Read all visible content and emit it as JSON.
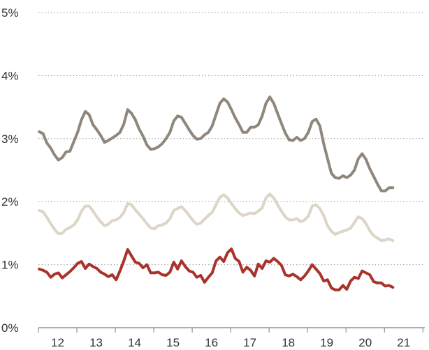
{
  "chart_data": {
    "type": "line",
    "title": "",
    "xlabel": "",
    "ylabel": "",
    "y_unit": "%",
    "ylim": [
      0,
      5
    ],
    "yticks": [
      0,
      1,
      2,
      3,
      4,
      5
    ],
    "ytick_labels": [
      "0%",
      "1%",
      "2%",
      "3%",
      "4%",
      "5%"
    ],
    "xlim": [
      11.5,
      21.55
    ],
    "x_categories": [
      "12",
      "13",
      "14",
      "15",
      "16",
      "17",
      "18",
      "19",
      "20",
      "21"
    ],
    "x_boundaries": [
      11.5,
      12.5,
      13.5,
      14.5,
      15.5,
      16.5,
      17.5,
      18.5,
      19.5,
      20.5,
      21.5
    ],
    "grid": "horizontal dotted",
    "legend": "none",
    "series": [
      {
        "color": "#8f877b",
        "points": [
          [
            11.52,
            3.11
          ],
          [
            11.62,
            3.08
          ],
          [
            11.72,
            2.93
          ],
          [
            11.82,
            2.85
          ],
          [
            11.92,
            2.74
          ],
          [
            12.02,
            2.66
          ],
          [
            12.12,
            2.7
          ],
          [
            12.22,
            2.79
          ],
          [
            12.32,
            2.8
          ],
          [
            12.42,
            2.95
          ],
          [
            12.52,
            3.1
          ],
          [
            12.62,
            3.3
          ],
          [
            12.72,
            3.43
          ],
          [
            12.82,
            3.38
          ],
          [
            12.92,
            3.22
          ],
          [
            13.02,
            3.14
          ],
          [
            13.12,
            3.05
          ],
          [
            13.22,
            2.94
          ],
          [
            13.32,
            2.97
          ],
          [
            13.42,
            3.01
          ],
          [
            13.52,
            3.05
          ],
          [
            13.62,
            3.1
          ],
          [
            13.72,
            3.23
          ],
          [
            13.82,
            3.46
          ],
          [
            13.92,
            3.4
          ],
          [
            14.02,
            3.3
          ],
          [
            14.12,
            3.15
          ],
          [
            14.22,
            3.04
          ],
          [
            14.32,
            2.9
          ],
          [
            14.42,
            2.83
          ],
          [
            14.52,
            2.84
          ],
          [
            14.62,
            2.87
          ],
          [
            14.72,
            2.92
          ],
          [
            14.82,
            3.0
          ],
          [
            14.92,
            3.1
          ],
          [
            15.02,
            3.28
          ],
          [
            15.12,
            3.36
          ],
          [
            15.22,
            3.34
          ],
          [
            15.32,
            3.24
          ],
          [
            15.42,
            3.14
          ],
          [
            15.52,
            3.05
          ],
          [
            15.62,
            2.99
          ],
          [
            15.72,
            3.0
          ],
          [
            15.82,
            3.06
          ],
          [
            15.92,
            3.1
          ],
          [
            16.02,
            3.2
          ],
          [
            16.12,
            3.38
          ],
          [
            16.22,
            3.56
          ],
          [
            16.32,
            3.63
          ],
          [
            16.42,
            3.58
          ],
          [
            16.52,
            3.46
          ],
          [
            16.62,
            3.33
          ],
          [
            16.72,
            3.22
          ],
          [
            16.82,
            3.1
          ],
          [
            16.92,
            3.1
          ],
          [
            17.02,
            3.18
          ],
          [
            17.12,
            3.18
          ],
          [
            17.22,
            3.22
          ],
          [
            17.32,
            3.36
          ],
          [
            17.42,
            3.56
          ],
          [
            17.52,
            3.66
          ],
          [
            17.62,
            3.56
          ],
          [
            17.72,
            3.4
          ],
          [
            17.82,
            3.24
          ],
          [
            17.92,
            3.09
          ],
          [
            18.02,
            2.98
          ],
          [
            18.12,
            2.97
          ],
          [
            18.22,
            3.02
          ],
          [
            18.32,
            2.97
          ],
          [
            18.42,
            3.0
          ],
          [
            18.52,
            3.1
          ],
          [
            18.62,
            3.27
          ],
          [
            18.72,
            3.31
          ],
          [
            18.82,
            3.2
          ],
          [
            18.92,
            2.92
          ],
          [
            19.02,
            2.68
          ],
          [
            19.12,
            2.45
          ],
          [
            19.22,
            2.38
          ],
          [
            19.32,
            2.37
          ],
          [
            19.42,
            2.41
          ],
          [
            19.52,
            2.38
          ],
          [
            19.62,
            2.42
          ],
          [
            19.72,
            2.5
          ],
          [
            19.82,
            2.68
          ],
          [
            19.92,
            2.76
          ],
          [
            20.02,
            2.67
          ],
          [
            20.12,
            2.52
          ],
          [
            20.22,
            2.4
          ],
          [
            20.32,
            2.28
          ],
          [
            20.42,
            2.17
          ],
          [
            20.52,
            2.17
          ],
          [
            20.62,
            2.22
          ],
          [
            20.72,
            2.22
          ]
        ]
      },
      {
        "color": "#ddd5c6",
        "points": [
          [
            11.52,
            1.86
          ],
          [
            11.62,
            1.84
          ],
          [
            11.72,
            1.75
          ],
          [
            11.82,
            1.65
          ],
          [
            11.92,
            1.56
          ],
          [
            12.02,
            1.49
          ],
          [
            12.12,
            1.5
          ],
          [
            12.22,
            1.56
          ],
          [
            12.32,
            1.59
          ],
          [
            12.42,
            1.63
          ],
          [
            12.52,
            1.71
          ],
          [
            12.62,
            1.85
          ],
          [
            12.72,
            1.93
          ],
          [
            12.82,
            1.93
          ],
          [
            12.92,
            1.85
          ],
          [
            13.02,
            1.76
          ],
          [
            13.12,
            1.68
          ],
          [
            13.22,
            1.62
          ],
          [
            13.32,
            1.64
          ],
          [
            13.42,
            1.7
          ],
          [
            13.52,
            1.71
          ],
          [
            13.62,
            1.75
          ],
          [
            13.72,
            1.83
          ],
          [
            13.82,
            1.97
          ],
          [
            13.92,
            1.95
          ],
          [
            14.02,
            1.87
          ],
          [
            14.12,
            1.8
          ],
          [
            14.22,
            1.73
          ],
          [
            14.32,
            1.65
          ],
          [
            14.42,
            1.58
          ],
          [
            14.52,
            1.57
          ],
          [
            14.62,
            1.62
          ],
          [
            14.72,
            1.63
          ],
          [
            14.82,
            1.66
          ],
          [
            14.92,
            1.73
          ],
          [
            15.02,
            1.86
          ],
          [
            15.12,
            1.89
          ],
          [
            15.22,
            1.92
          ],
          [
            15.32,
            1.86
          ],
          [
            15.42,
            1.78
          ],
          [
            15.52,
            1.7
          ],
          [
            15.62,
            1.64
          ],
          [
            15.72,
            1.66
          ],
          [
            15.82,
            1.72
          ],
          [
            15.92,
            1.78
          ],
          [
            16.02,
            1.83
          ],
          [
            16.12,
            1.95
          ],
          [
            16.22,
            2.07
          ],
          [
            16.32,
            2.11
          ],
          [
            16.42,
            2.06
          ],
          [
            16.52,
            1.97
          ],
          [
            16.62,
            1.89
          ],
          [
            16.72,
            1.82
          ],
          [
            16.82,
            1.78
          ],
          [
            16.92,
            1.8
          ],
          [
            17.02,
            1.82
          ],
          [
            17.12,
            1.81
          ],
          [
            17.22,
            1.85
          ],
          [
            17.32,
            1.9
          ],
          [
            17.42,
            2.06
          ],
          [
            17.52,
            2.12
          ],
          [
            17.62,
            2.06
          ],
          [
            17.72,
            1.95
          ],
          [
            17.82,
            1.85
          ],
          [
            17.92,
            1.76
          ],
          [
            18.02,
            1.71
          ],
          [
            18.12,
            1.71
          ],
          [
            18.22,
            1.73
          ],
          [
            18.32,
            1.68
          ],
          [
            18.42,
            1.71
          ],
          [
            18.52,
            1.77
          ],
          [
            18.62,
            1.93
          ],
          [
            18.72,
            1.95
          ],
          [
            18.82,
            1.89
          ],
          [
            18.92,
            1.78
          ],
          [
            19.02,
            1.62
          ],
          [
            19.12,
            1.53
          ],
          [
            19.22,
            1.48
          ],
          [
            19.32,
            1.51
          ],
          [
            19.42,
            1.53
          ],
          [
            19.52,
            1.55
          ],
          [
            19.62,
            1.58
          ],
          [
            19.72,
            1.67
          ],
          [
            19.82,
            1.76
          ],
          [
            19.92,
            1.73
          ],
          [
            20.02,
            1.65
          ],
          [
            20.12,
            1.54
          ],
          [
            20.22,
            1.46
          ],
          [
            20.32,
            1.42
          ],
          [
            20.42,
            1.38
          ],
          [
            20.52,
            1.39
          ],
          [
            20.62,
            1.41
          ],
          [
            20.72,
            1.38
          ]
        ]
      },
      {
        "color": "#a9332b",
        "points": [
          [
            11.52,
            0.93
          ],
          [
            11.62,
            0.91
          ],
          [
            11.72,
            0.88
          ],
          [
            11.82,
            0.8
          ],
          [
            11.92,
            0.85
          ],
          [
            12.02,
            0.87
          ],
          [
            12.12,
            0.79
          ],
          [
            12.22,
            0.84
          ],
          [
            12.32,
            0.89
          ],
          [
            12.42,
            0.95
          ],
          [
            12.52,
            1.02
          ],
          [
            12.62,
            1.05
          ],
          [
            12.72,
            0.94
          ],
          [
            12.82,
            1.01
          ],
          [
            12.92,
            0.97
          ],
          [
            13.02,
            0.94
          ],
          [
            13.12,
            0.88
          ],
          [
            13.22,
            0.85
          ],
          [
            13.32,
            0.81
          ],
          [
            13.42,
            0.84
          ],
          [
            13.52,
            0.76
          ],
          [
            13.62,
            0.9
          ],
          [
            13.72,
            1.06
          ],
          [
            13.82,
            1.24
          ],
          [
            13.92,
            1.14
          ],
          [
            14.02,
            1.04
          ],
          [
            14.12,
            1.02
          ],
          [
            14.22,
            0.95
          ],
          [
            14.32,
            1.0
          ],
          [
            14.42,
            0.87
          ],
          [
            14.52,
            0.87
          ],
          [
            14.62,
            0.88
          ],
          [
            14.72,
            0.84
          ],
          [
            14.82,
            0.83
          ],
          [
            14.92,
            0.88
          ],
          [
            15.02,
            1.04
          ],
          [
            15.12,
            0.93
          ],
          [
            15.22,
            1.06
          ],
          [
            15.32,
            0.97
          ],
          [
            15.42,
            0.9
          ],
          [
            15.52,
            0.88
          ],
          [
            15.62,
            0.8
          ],
          [
            15.72,
            0.83
          ],
          [
            15.82,
            0.72
          ],
          [
            15.92,
            0.8
          ],
          [
            16.02,
            0.87
          ],
          [
            16.12,
            1.06
          ],
          [
            16.22,
            1.12
          ],
          [
            16.32,
            1.05
          ],
          [
            16.42,
            1.19
          ],
          [
            16.52,
            1.25
          ],
          [
            16.62,
            1.1
          ],
          [
            16.72,
            1.05
          ],
          [
            16.82,
            0.88
          ],
          [
            16.92,
            0.96
          ],
          [
            17.02,
            0.91
          ],
          [
            17.12,
            0.82
          ],
          [
            17.22,
            1.01
          ],
          [
            17.32,
            0.94
          ],
          [
            17.42,
            1.06
          ],
          [
            17.52,
            1.04
          ],
          [
            17.62,
            1.1
          ],
          [
            17.72,
            1.05
          ],
          [
            17.82,
            0.99
          ],
          [
            17.92,
            0.84
          ],
          [
            18.02,
            0.82
          ],
          [
            18.12,
            0.85
          ],
          [
            18.22,
            0.81
          ],
          [
            18.32,
            0.76
          ],
          [
            18.42,
            0.82
          ],
          [
            18.52,
            0.9
          ],
          [
            18.62,
            1.0
          ],
          [
            18.72,
            0.93
          ],
          [
            18.82,
            0.86
          ],
          [
            18.92,
            0.74
          ],
          [
            19.02,
            0.76
          ],
          [
            19.12,
            0.63
          ],
          [
            19.22,
            0.6
          ],
          [
            19.32,
            0.6
          ],
          [
            19.42,
            0.67
          ],
          [
            19.52,
            0.61
          ],
          [
            19.62,
            0.74
          ],
          [
            19.72,
            0.8
          ],
          [
            19.82,
            0.78
          ],
          [
            19.92,
            0.9
          ],
          [
            20.02,
            0.87
          ],
          [
            20.12,
            0.84
          ],
          [
            20.22,
            0.73
          ],
          [
            20.32,
            0.71
          ],
          [
            20.42,
            0.71
          ],
          [
            20.52,
            0.66
          ],
          [
            20.62,
            0.67
          ],
          [
            20.72,
            0.64
          ]
        ]
      }
    ]
  }
}
